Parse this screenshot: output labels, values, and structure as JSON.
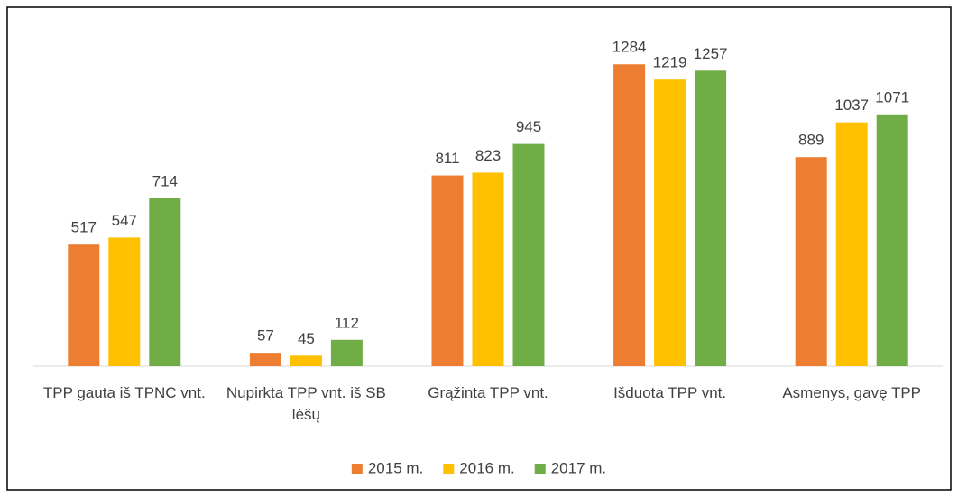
{
  "chart_data": {
    "type": "bar",
    "categories": [
      "TPP gauta iš TPNC vnt.",
      "Nupirkta TPP vnt. iš SB lėšų",
      "Grąžinta TPP vnt.",
      "Išduota TPP vnt.",
      "Asmenys, gavę TPP"
    ],
    "series": [
      {
        "name": "2015 m.",
        "color": "#ed7d31",
        "values": [
          517,
          57,
          811,
          1284,
          889
        ]
      },
      {
        "name": "2016 m.",
        "color": "#ffc000",
        "values": [
          547,
          45,
          823,
          1219,
          1037
        ]
      },
      {
        "name": "2017 m.",
        "color": "#70ad47",
        "values": [
          714,
          112,
          945,
          1257,
          1071
        ]
      }
    ],
    "ylim": [
      0,
      1400
    ],
    "legend": "bottom"
  }
}
